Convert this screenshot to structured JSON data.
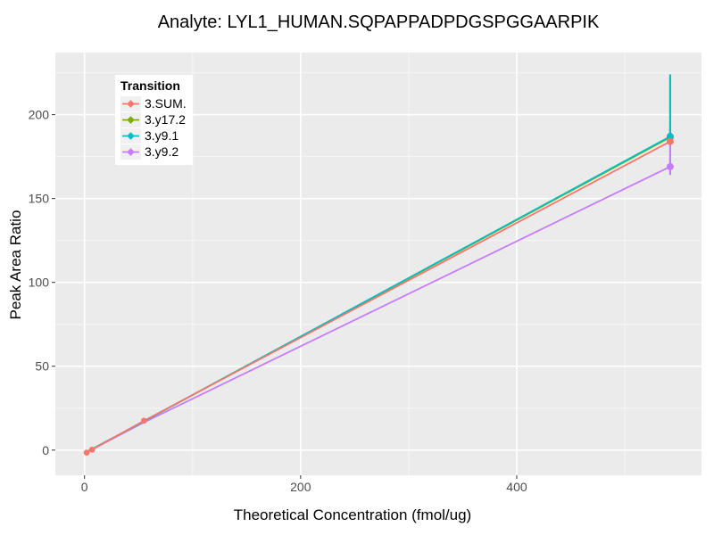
{
  "chart_data": {
    "type": "line",
    "title": "Analyte: LYL1_HUMAN.SQPAPPADPDGSPGGAARPIK",
    "xlabel": "Theoretical Concentration (fmol/ug)",
    "ylabel": "Peak Area Ratio",
    "xlim": [
      -27,
      571
    ],
    "ylim": [
      -15,
      237
    ],
    "x_major_ticks": [
      0,
      200,
      400
    ],
    "y_major_ticks": [
      0,
      50,
      100,
      150,
      200
    ],
    "x_minor_ticks": [
      100,
      300,
      500
    ],
    "y_minor_ticks": [
      25,
      75,
      125,
      175,
      225
    ],
    "x": [
      2,
      7,
      55,
      542
    ],
    "series": [
      {
        "name": "3.SUM.",
        "color": "#F8766D",
        "y": [
          -1.5,
          0.3,
          17.5,
          184.0
        ],
        "point_indices": [
          0,
          1,
          2,
          3
        ],
        "error_bars": []
      },
      {
        "name": "3.y17.2",
        "color": "#7CAE00",
        "y": [
          -1.0,
          0.6,
          17.2,
          186.5
        ],
        "point_indices": [
          3
        ],
        "error_bars": []
      },
      {
        "name": "3.y9.1",
        "color": "#00BFC4",
        "y": [
          -1.0,
          0.6,
          17.2,
          187.0
        ],
        "point_indices": [
          3
        ],
        "error_bars": [
          {
            "x": 542,
            "low": 183,
            "high": 224
          }
        ]
      },
      {
        "name": "3.y9.2",
        "color": "#C77CFF",
        "y": [
          -1.2,
          0.4,
          16.5,
          169.0
        ],
        "point_indices": [
          3
        ],
        "error_bars": [
          {
            "x": 542,
            "low": 164,
            "high": 191
          }
        ]
      }
    ],
    "legend": {
      "title": "Transition",
      "position": "top-left"
    },
    "colors": {
      "panel_bg": "#EBEBEB",
      "grid_major": "#FFFFFF",
      "grid_minor": "#FFFFFF",
      "tick_mark": "#333333",
      "tick_label": "#4D4D4D",
      "legend_key_bg": "#F0F0F0"
    },
    "grid": true
  }
}
